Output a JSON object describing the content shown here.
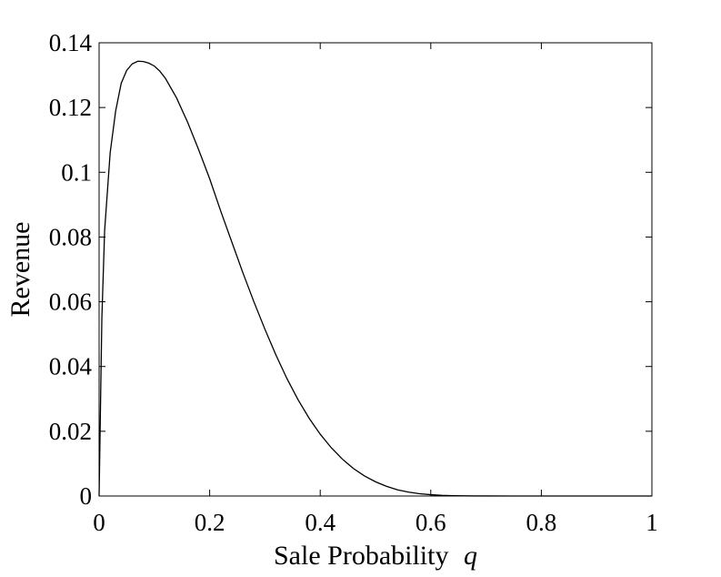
{
  "chart_data": {
    "type": "line",
    "xlabel": "Sale Probability",
    "xlabel_var": "q",
    "ylabel": "Revenue",
    "xlim": [
      0,
      1
    ],
    "ylim": [
      0,
      0.14
    ],
    "x_ticks": [
      0,
      0.2,
      0.4,
      0.6,
      0.8,
      1
    ],
    "x_tick_labels": [
      "0",
      "0.2",
      "0.4",
      "0.6",
      "0.8",
      "1"
    ],
    "y_ticks": [
      0,
      0.02,
      0.04,
      0.06,
      0.08,
      0.1,
      0.12,
      0.14
    ],
    "y_tick_labels": [
      "0",
      "0.02",
      "0.04",
      "0.06",
      "0.08",
      "0.1",
      "0.12",
      "0.14"
    ],
    "grid": false,
    "colors": {
      "line": "#000000",
      "axes": "#000000",
      "background": "#ffffff"
    },
    "series": [
      {
        "x": [
          0,
          0.005,
          0.01,
          0.02,
          0.03,
          0.04,
          0.05,
          0.06,
          0.07,
          0.08,
          0.09,
          0.1,
          0.11,
          0.12,
          0.14,
          0.16,
          0.18,
          0.2,
          0.22,
          0.24,
          0.26,
          0.28,
          0.3,
          0.32,
          0.34,
          0.36,
          0.38,
          0.4,
          0.42,
          0.44,
          0.46,
          0.48,
          0.5,
          0.52,
          0.54,
          0.56,
          0.58,
          0.6,
          0.62,
          0.64,
          0.66,
          0.68,
          0.7,
          0.75,
          0.8,
          0.85,
          0.9,
          0.95,
          1
        ],
        "y": [
          0,
          0.055,
          0.082,
          0.106,
          0.119,
          0.1275,
          0.1315,
          0.1335,
          0.1343,
          0.1342,
          0.1337,
          0.1328,
          0.1312,
          0.129,
          0.123,
          0.1155,
          0.107,
          0.098,
          0.088,
          0.0785,
          0.069,
          0.06,
          0.0515,
          0.0435,
          0.0362,
          0.0297,
          0.024,
          0.0191,
          0.0149,
          0.0114,
          0.0085,
          0.0062,
          0.0044,
          0.003,
          0.0019,
          0.0012,
          0.0007,
          0.0004,
          0.0002,
          0.0001,
          5e-05,
          2e-05,
          1e-05,
          0,
          0,
          0,
          0,
          0,
          0
        ]
      }
    ]
  }
}
